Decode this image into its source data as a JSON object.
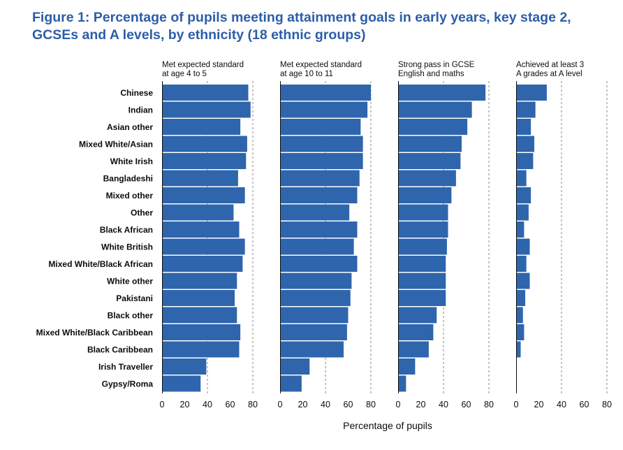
{
  "figure": {
    "title": "Figure 1:  Percentage of pupils meeting attainment goals in early years, key stage 2, GCSEs and A levels, by ethnicity (18 ethnic groups)"
  },
  "chart_data": {
    "type": "bar",
    "orientation": "horizontal",
    "title": "Figure 1:  Percentage of pupils meeting attainment goals in early years, key stage 2, GCSEs and A levels, by ethnicity (18 ethnic groups)",
    "xlabel": "Percentage of pupils",
    "xlim": [
      0,
      80
    ],
    "xticks": [
      "0",
      "20",
      "40",
      "60",
      "80"
    ],
    "grid": "dashed vertical at 40 and 80",
    "bar_color": "#2e65ad",
    "categories": [
      "Chinese",
      "Indian",
      "Asian other",
      "Mixed White/Asian",
      "White Irish",
      "Bangladeshi",
      "Mixed other",
      "Other",
      "Black African",
      "White British",
      "Mixed White/Black African",
      "White other",
      "Pakistani",
      "Black other",
      "Mixed White/Black Caribbean",
      "Black Caribbean",
      "Irish Traveller",
      "Gypsy/Roma"
    ],
    "series": [
      {
        "name": "Met expected standard at age 4 to 5",
        "name_lines": [
          "Met expected standard",
          "at age 4 to 5"
        ],
        "values": [
          76,
          78,
          69,
          75,
          74,
          67,
          73,
          63,
          68,
          73,
          71,
          66,
          64,
          66,
          69,
          68,
          39,
          34
        ]
      },
      {
        "name": "Met expected standard at age 10 to 11",
        "name_lines": [
          "Met expected standard",
          "at age 10 to 11"
        ],
        "values": [
          80,
          77,
          71,
          73,
          73,
          70,
          68,
          61,
          68,
          65,
          68,
          63,
          62,
          60,
          59,
          56,
          26,
          19
        ]
      },
      {
        "name": "Strong pass in GCSE English and maths",
        "name_lines": [
          "Strong pass in GCSE",
          "English and maths"
        ],
        "values": [
          77,
          65,
          61,
          56,
          55,
          51,
          47,
          44,
          44,
          43,
          42,
          42,
          42,
          34,
          31,
          27,
          15,
          7
        ]
      },
      {
        "name": "Achieved at least 3 A grades at A level",
        "name_lines": [
          "Achieved at least 3",
          "A grades at A level"
        ],
        "values": [
          27,
          17,
          13,
          16,
          15,
          9,
          13,
          11,
          7,
          12,
          9,
          12,
          8,
          6,
          7,
          4,
          null,
          null
        ]
      }
    ]
  }
}
